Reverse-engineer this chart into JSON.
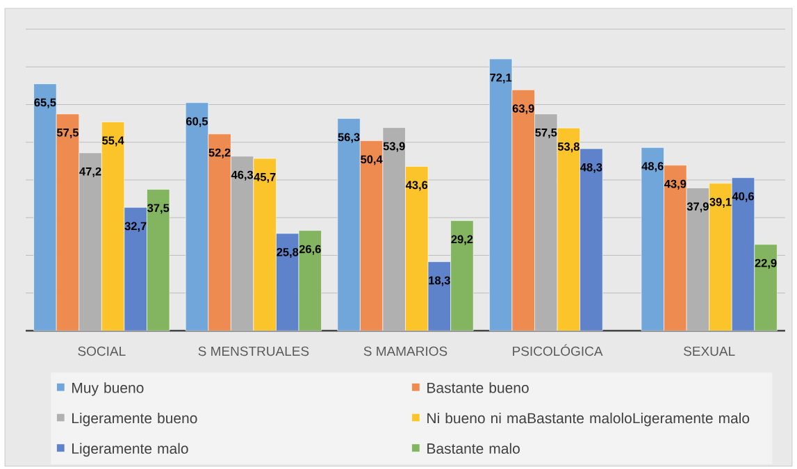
{
  "chart_data": {
    "type": "bar",
    "categories": [
      "SOCIAL",
      "S MENSTRUALES",
      "S MAMARIOS",
      "PSICOLÓGICA",
      "SEXUAL"
    ],
    "series": [
      {
        "name": "Muy bueno",
        "color": "#70a6da",
        "values": [
          65.5,
          60.5,
          56.3,
          72.1,
          48.6
        ],
        "value_labels": [
          "65,5",
          "60,5",
          "56,3",
          "72,1",
          "48,6"
        ]
      },
      {
        "name": "Bastante bueno",
        "color": "#ed8b50",
        "values": [
          57.5,
          52.2,
          50.4,
          63.9,
          43.9
        ],
        "value_labels": [
          "57,5",
          "52,2",
          "50,4",
          "63,9",
          "43,9"
        ]
      },
      {
        "name": "Ligeramente bueno",
        "color": "#b0b0b0",
        "values": [
          47.2,
          46.3,
          53.9,
          57.5,
          37.9
        ],
        "value_labels": [
          "47,2",
          "46,3",
          "53,9",
          "57,5",
          "37,9"
        ]
      },
      {
        "name": "Ni bueno ni maBastante maloloLigeramente malo",
        "color": "#fbc42b",
        "values": [
          55.4,
          45.7,
          43.6,
          53.8,
          39.1
        ],
        "value_labels": [
          "55,4",
          "45,7",
          "43,6",
          "53,8",
          "39,1"
        ]
      },
      {
        "name": "Ligeramente malo",
        "color": "#5e83cb",
        "values": [
          32.7,
          25.8,
          18.3,
          48.3,
          40.6
        ],
        "value_labels": [
          "32,7",
          "25,8",
          "18,3",
          "48,3",
          "40,6"
        ]
      },
      {
        "name": "Bastante malo",
        "color": "#83b561",
        "values": [
          37.5,
          26.6,
          29.2,
          null,
          22.9
        ],
        "value_labels": [
          "37,5",
          "26,6",
          "29,2",
          null,
          "22,9"
        ]
      }
    ],
    "ylim": [
      0,
      80
    ],
    "yticks": [
      {
        "value": 0,
        "label": null
      },
      {
        "value": 10,
        "label": null
      },
      {
        "value": 20,
        "label": null
      },
      {
        "value": 30,
        "label": null
      },
      {
        "value": 40,
        "label": null
      },
      {
        "value": 50,
        "label": null
      },
      {
        "value": 60,
        "label": null
      },
      {
        "value": 70,
        "label": null
      },
      {
        "value": 80,
        "label": null
      }
    ],
    "grid": "y",
    "legend": "bottom",
    "tick_labels": "x"
  }
}
